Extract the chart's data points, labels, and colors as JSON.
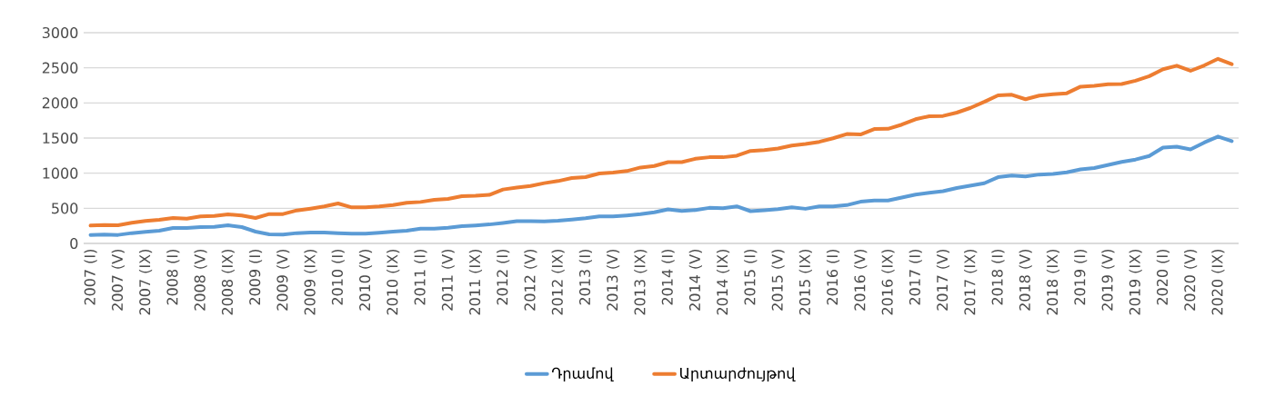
{
  "chart_data": {
    "type": "line",
    "categories": [
      "2007 (I)",
      null,
      "2007 (V)",
      null,
      "2007 (IX)",
      null,
      "2008 (I)",
      null,
      "2008 (V)",
      null,
      "2008 (IX)",
      null,
      "2009 (I)",
      null,
      "2009 (V)",
      null,
      "2009 (IX)",
      null,
      "2010 (I)",
      null,
      "2010 (V)",
      null,
      "2010 (IX)",
      null,
      "2011 (I)",
      null,
      "2011 (V)",
      null,
      "2011 (IX)",
      null,
      "2012 (I)",
      null,
      "2012 (V)",
      null,
      "2012 (IX)",
      null,
      "2013 (I)",
      null,
      "2013 (V)",
      null,
      "2013 (IX)",
      null,
      "2014 (I)",
      null,
      "2014 (V)",
      null,
      "2014 (IX)",
      null,
      "2015 (I)",
      null,
      "2015 (V)",
      null,
      "2015 (IX)",
      null,
      "2016 (I)",
      null,
      "2016 (V)",
      null,
      "2016 (IX)",
      null,
      "2017 (I)",
      null,
      "2017 (V)",
      null,
      "2017 (IX)",
      null,
      "2018 (I)",
      null,
      "2018 (V)",
      null,
      "2018 (IX)",
      null,
      "2019 (I)",
      null,
      "2019 (V)",
      null,
      "2019 (IX)",
      null,
      "2020 (I)",
      null,
      "2020 (V)",
      null,
      "2020 (IX)",
      null
    ],
    "series": [
      {
        "name": "Դրամով",
        "color": "#5b9bd5",
        "values": [
          121,
          125,
          121,
          147,
          164,
          181,
          220,
          220,
          233,
          237,
          259,
          233,
          168,
          129,
          125,
          147,
          155,
          155,
          147,
          138,
          138,
          151,
          168,
          181,
          211,
          211,
          224,
          246,
          257,
          270,
          292,
          317,
          317,
          313,
          322,
          339,
          360,
          386,
          386,
          399,
          416,
          442,
          485,
          463,
          476,
          506,
          502,
          528,
          459,
          472,
          489,
          515,
          493,
          528,
          528,
          545,
          594,
          611,
          611,
          653,
          696,
          721,
          743,
          789,
          823,
          857,
          943,
          968,
          955,
          981,
          989,
          1011,
          1053,
          1074,
          1117,
          1160,
          1194,
          1245,
          1364,
          1377,
          1338,
          1436,
          1521,
          1457
        ]
      },
      {
        "name": "Արտարժույթով",
        "color": "#ed7d31",
        "values": [
          254,
          263,
          259,
          293,
          319,
          336,
          362,
          353,
          384,
          392,
          414,
          397,
          362,
          418,
          418,
          470,
          496,
          526,
          569,
          513,
          513,
          526,
          547,
          578,
          590,
          621,
          634,
          672,
          678,
          691,
          768,
          794,
          819,
          858,
          888,
          931,
          944,
          995,
          1008,
          1030,
          1081,
          1103,
          1158,
          1158,
          1205,
          1227,
          1227,
          1248,
          1317,
          1330,
          1351,
          1394,
          1416,
          1446,
          1497,
          1557,
          1551,
          1628,
          1632,
          1691,
          1768,
          1811,
          1815,
          1862,
          1930,
          2015,
          2108,
          2117,
          2053,
          2104,
          2125,
          2138,
          2232,
          2245,
          2266,
          2270,
          2317,
          2381,
          2479,
          2530,
          2457,
          2534,
          2628,
          2551
        ]
      }
    ],
    "ylim": [
      0,
      3000
    ],
    "yticks": [
      0,
      500,
      1000,
      1500,
      2000,
      2500,
      3000
    ],
    "grid": "y",
    "legend": "bottom"
  }
}
